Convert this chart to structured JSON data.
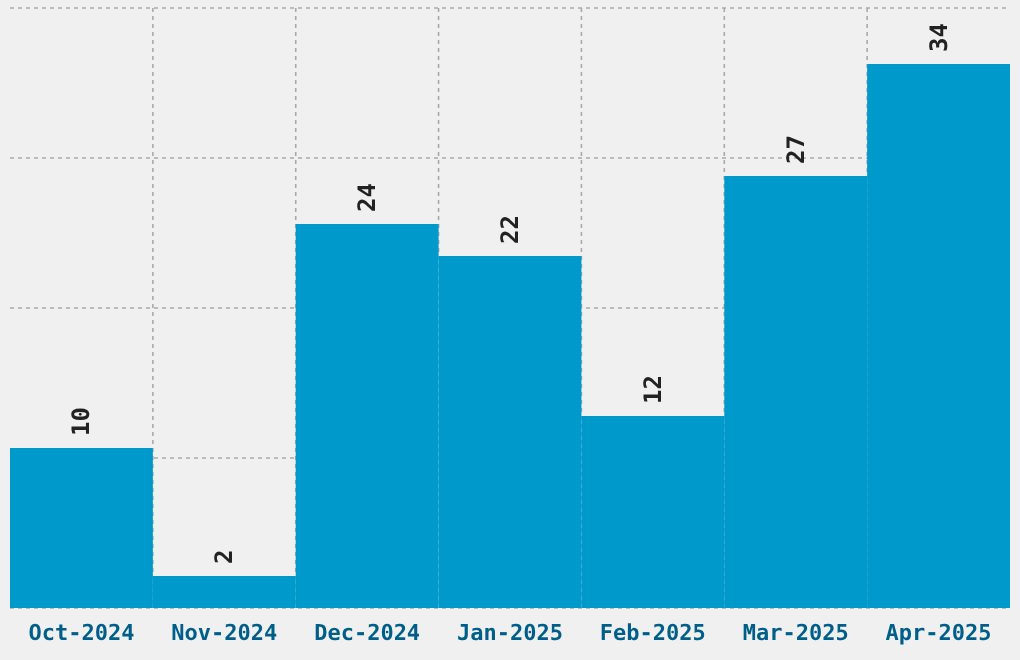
{
  "chart_data": {
    "type": "bar",
    "categories": [
      "Oct-2024",
      "Nov-2024",
      "Dec-2024",
      "Jan-2025",
      "Feb-2025",
      "Mar-2025",
      "Apr-2025"
    ],
    "values": [
      10,
      2,
      24,
      22,
      12,
      27,
      34
    ],
    "color": "#0099cc",
    "data_labels": true,
    "grid": true,
    "tick_labels": "x",
    "ylim": [
      0,
      37.5
    ],
    "yticks": [
      {
        "value": 0,
        "label": null
      },
      {
        "value": 9.375,
        "label": null
      },
      {
        "value": 18.75,
        "label": null
      },
      {
        "value": 28.125,
        "label": null
      },
      {
        "value": 37.5,
        "label": null
      }
    ]
  }
}
